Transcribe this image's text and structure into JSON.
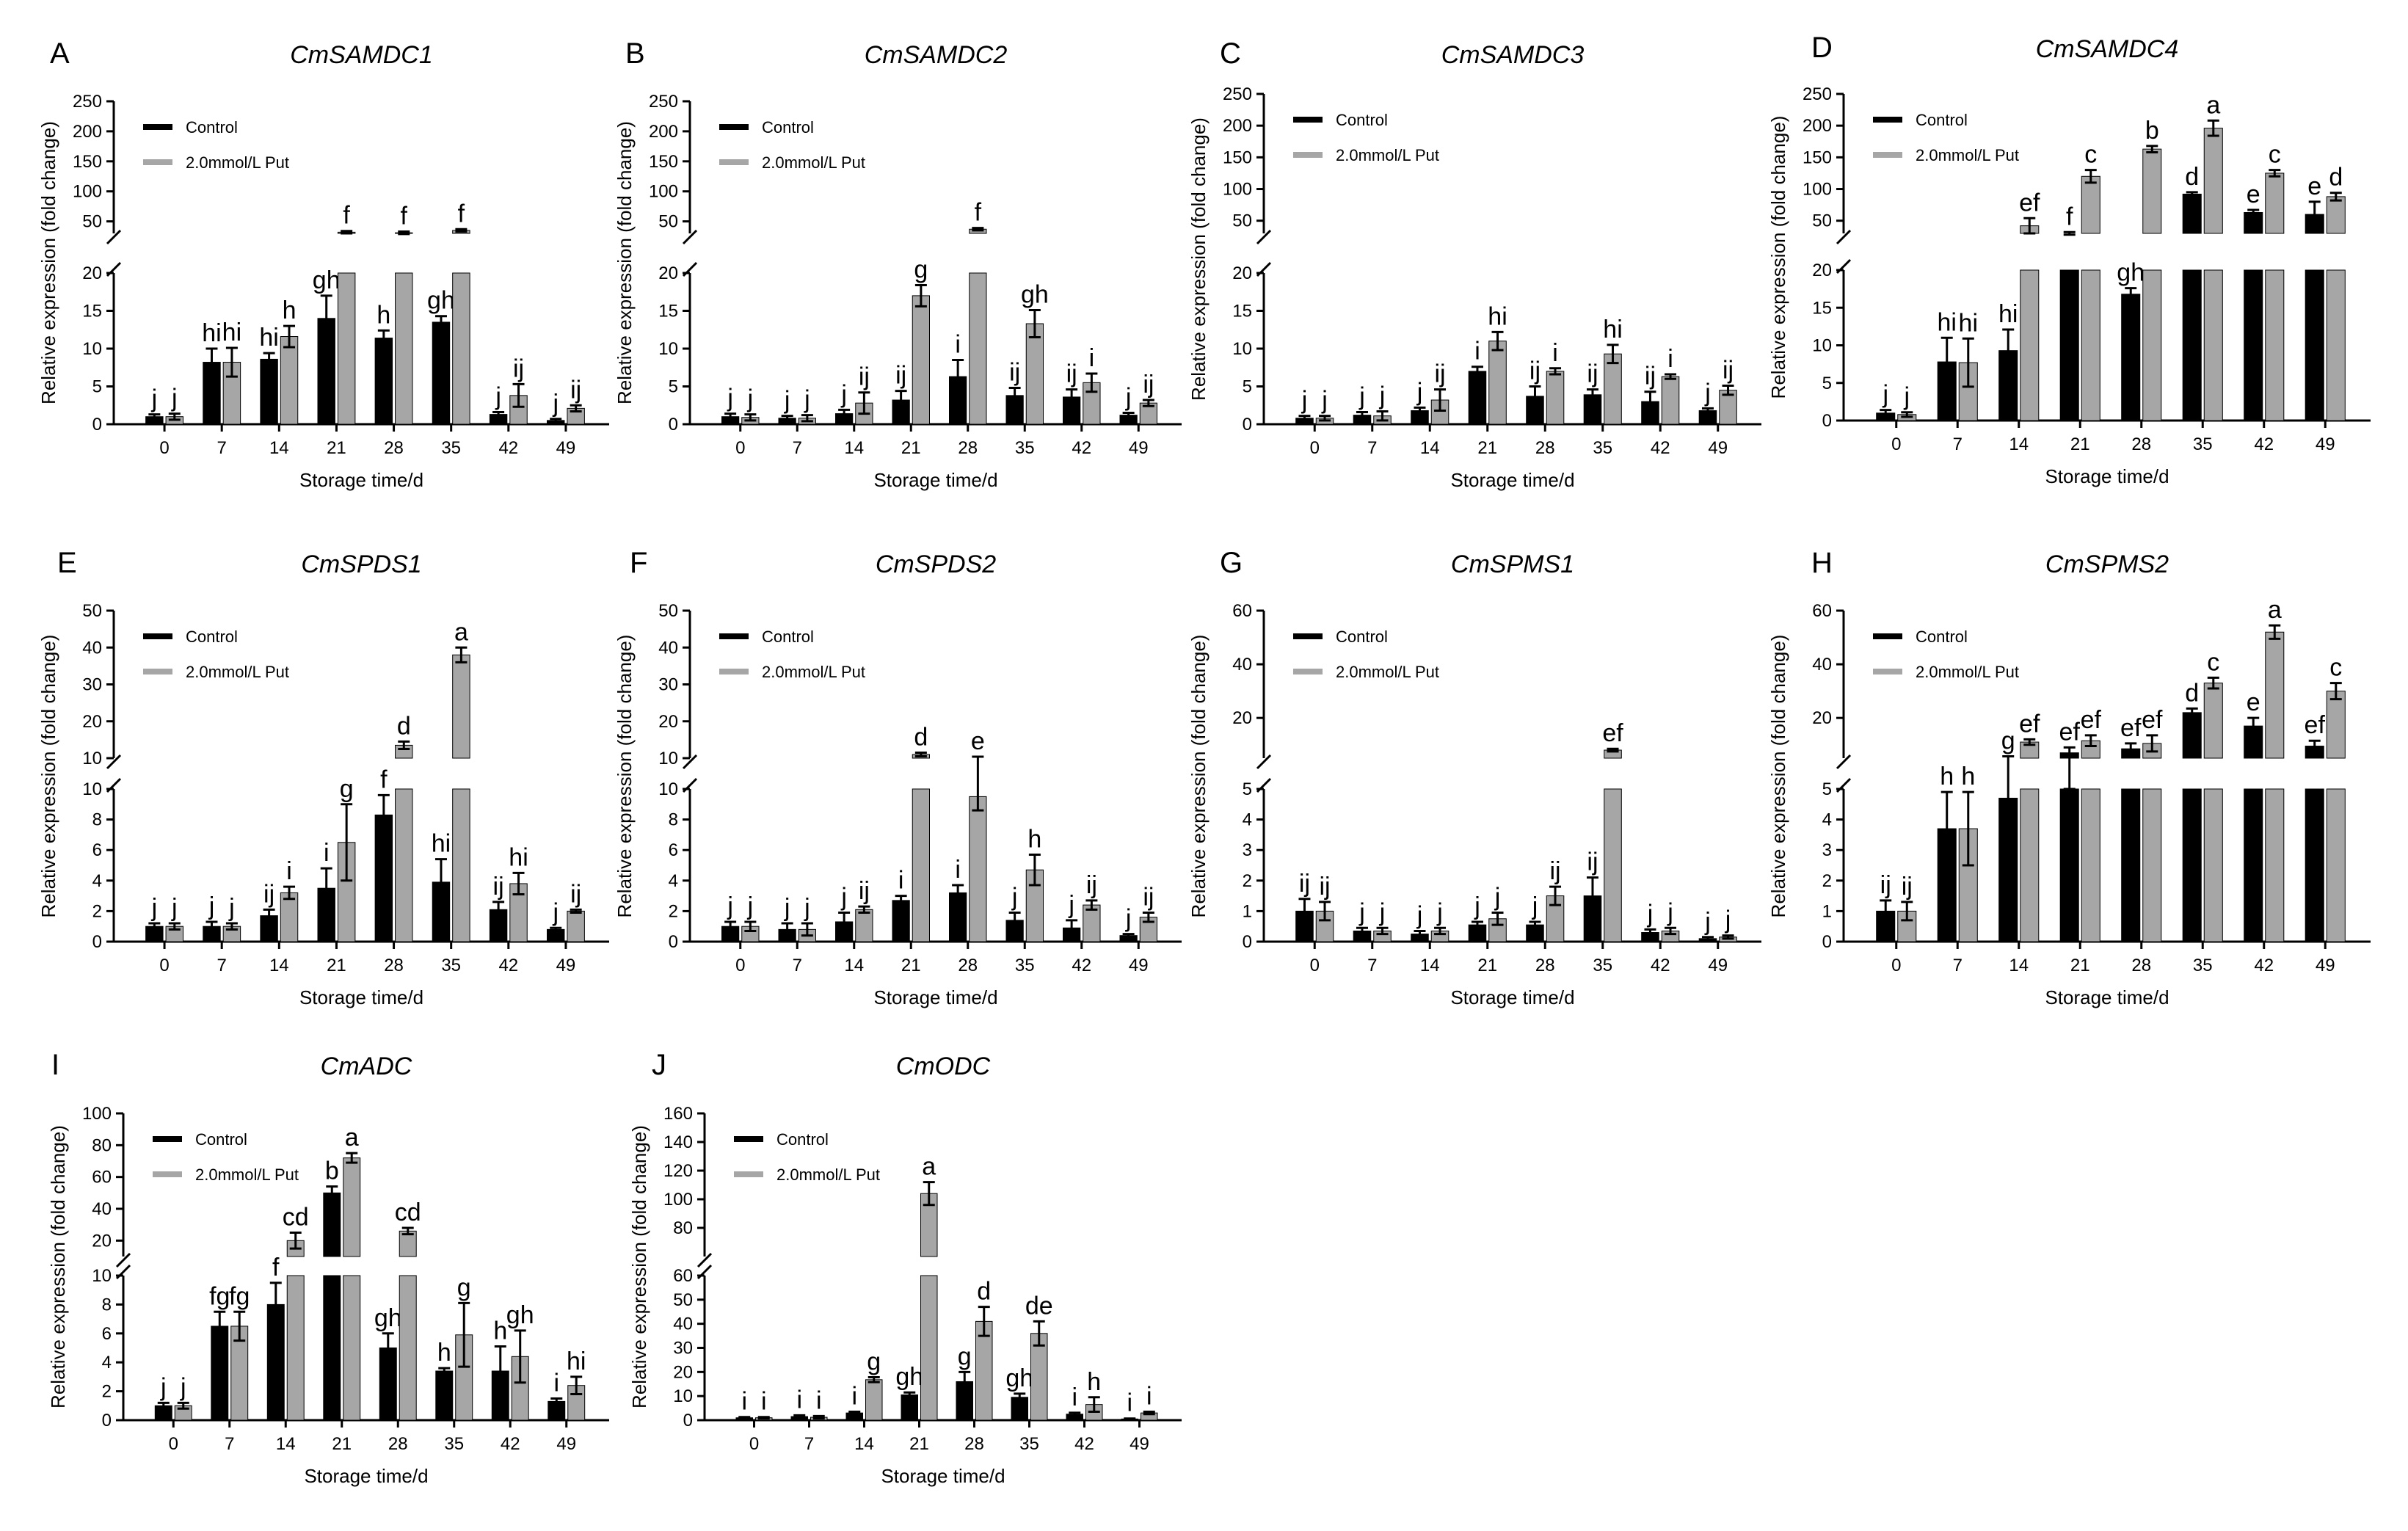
{
  "colors": {
    "control": "#000000",
    "put": "#a6a6a6",
    "axis": "#000000"
  },
  "chart_data": [
    {
      "letter": "A",
      "title": "CmSAMDC1",
      "type": "bar",
      "xlabel": "Storage time/d",
      "ylabel": "Relative expression (fold change)",
      "categories": [
        "0",
        "7",
        "14",
        "21",
        "28",
        "35",
        "42",
        "49"
      ],
      "legend": [
        "Control",
        "2.0mmol/L Put"
      ],
      "legend_position": "top-left",
      "axis_break": true,
      "lower_range": [
        0,
        20
      ],
      "lower_ticks": [
        "0",
        "5",
        "10",
        "15",
        "20"
      ],
      "upper_range": [
        30,
        250
      ],
      "upper_ticks": [
        "50",
        "100",
        "150",
        "200",
        "250"
      ],
      "series": [
        {
          "name": "Control",
          "values": [
            1.0,
            8.2,
            8.6,
            14.0,
            11.4,
            13.5,
            1.3,
            0.5
          ],
          "errors": [
            0.3,
            1.8,
            0.8,
            3.0,
            1.0,
            0.8,
            0.3,
            0.2
          ],
          "labels": [
            "j",
            "hi",
            "hi",
            "gh",
            "h",
            "gh",
            "j",
            "j"
          ]
        },
        {
          "name": "2.0mmol/L Put",
          "values": [
            1.0,
            8.2,
            11.6,
            32,
            31,
            35,
            3.8,
            2.1
          ],
          "errors": [
            0.4,
            1.9,
            1.4,
            2.0,
            2.0,
            2.0,
            1.5,
            0.4
          ],
          "labels": [
            "j",
            "hi",
            "h",
            "f",
            "f",
            "f",
            "ij",
            "ij"
          ]
        }
      ]
    },
    {
      "letter": "B",
      "title": "CmSAMDC2",
      "type": "bar",
      "xlabel": "Storage time/d",
      "ylabel": "Relative expression (fold change)",
      "categories": [
        "0",
        "7",
        "14",
        "21",
        "28",
        "35",
        "42",
        "49"
      ],
      "legend": [
        "Control",
        "2.0mmol/L Put"
      ],
      "legend_position": "top-left",
      "axis_break": true,
      "lower_range": [
        0,
        20
      ],
      "lower_ticks": [
        "0",
        "5",
        "10",
        "15",
        "20"
      ],
      "upper_range": [
        30,
        250
      ],
      "upper_ticks": [
        "50",
        "100",
        "150",
        "200",
        "250"
      ],
      "series": [
        {
          "name": "Control",
          "values": [
            1.0,
            0.8,
            1.4,
            3.2,
            6.3,
            3.8,
            3.6,
            1.2
          ],
          "errors": [
            0.4,
            0.3,
            0.5,
            1.2,
            2.2,
            1.0,
            1.0,
            0.3
          ],
          "labels": [
            "j",
            "j",
            "j",
            "ij",
            "i",
            "ij",
            "ij",
            "j"
          ]
        },
        {
          "name": "2.0mmol/L Put",
          "values": [
            0.9,
            0.8,
            2.8,
            17.0,
            37,
            13.3,
            5.5,
            2.8
          ],
          "errors": [
            0.4,
            0.4,
            1.4,
            1.4,
            2.0,
            1.8,
            1.2,
            0.4
          ],
          "labels": [
            "j",
            "j",
            "ij",
            "g",
            "f",
            "gh",
            "i",
            "ij"
          ]
        }
      ]
    },
    {
      "letter": "C",
      "title": "CmSAMDC3",
      "type": "bar",
      "xlabel": "Storage time/d",
      "ylabel": "Relative expression (fold change)",
      "categories": [
        "0",
        "7",
        "14",
        "21",
        "28",
        "35",
        "42",
        "49"
      ],
      "legend": [
        "Control",
        "2.0mmol/L Put"
      ],
      "legend_position": "top-left",
      "axis_break": true,
      "lower_range": [
        0,
        20
      ],
      "lower_ticks": [
        "0",
        "5",
        "10",
        "15",
        "20"
      ],
      "upper_range": [
        30,
        250
      ],
      "upper_ticks": [
        "50",
        "100",
        "150",
        "200",
        "250"
      ],
      "series": [
        {
          "name": "Control",
          "values": [
            0.8,
            1.2,
            1.8,
            7.0,
            3.7,
            3.9,
            3.0,
            1.8
          ],
          "errors": [
            0.3,
            0.4,
            0.4,
            0.6,
            1.3,
            0.7,
            1.3,
            0.3
          ],
          "labels": [
            "j",
            "j",
            "j",
            "i",
            "ij",
            "ij",
            "ij",
            "j"
          ]
        },
        {
          "name": "2.0mmol/L Put",
          "values": [
            0.8,
            1.1,
            3.2,
            11.0,
            7.0,
            9.3,
            6.3,
            4.5
          ],
          "errors": [
            0.3,
            0.6,
            1.4,
            1.2,
            0.4,
            1.2,
            0.3,
            0.6
          ],
          "labels": [
            "j",
            "j",
            "ij",
            "hi",
            "i",
            "hi",
            "i",
            "ij"
          ]
        }
      ]
    },
    {
      "letter": "D",
      "title": "CmSAMDC4",
      "type": "bar",
      "xlabel": "Storage time/d",
      "ylabel": "Relative expression (fold change)",
      "categories": [
        "0",
        "7",
        "14",
        "21",
        "28",
        "35",
        "42",
        "49"
      ],
      "legend": [
        "Control",
        "2.0mmol/L Put"
      ],
      "legend_position": "top-left",
      "axis_break": true,
      "lower_range": [
        0,
        20
      ],
      "lower_ticks": [
        "0",
        "5",
        "10",
        "15",
        "20"
      ],
      "upper_range": [
        30,
        250
      ],
      "upper_ticks": [
        "50",
        "100",
        "150",
        "200",
        "250"
      ],
      "series": [
        {
          "name": "Control",
          "values": [
            1.0,
            7.8,
            9.3,
            30,
            16.8,
            92,
            63,
            60
          ],
          "errors": [
            0.4,
            3.2,
            2.8,
            2.0,
            0.8,
            3.0,
            4.0,
            20.0
          ],
          "labels": [
            "j",
            "hi",
            "hi",
            "f",
            "gh",
            "d",
            "e",
            "e"
          ]
        },
        {
          "name": "2.0mmol/L Put",
          "values": [
            0.8,
            7.7,
            42,
            120,
            163,
            196,
            125,
            88
          ],
          "errors": [
            0.3,
            3.2,
            12.0,
            10.0,
            5.0,
            12.0,
            5.0,
            6.0
          ],
          "labels": [
            "j",
            "hi",
            "ef",
            "c",
            "b",
            "a",
            "c",
            "d"
          ]
        }
      ]
    },
    {
      "letter": "E",
      "title": "CmSPDS1",
      "type": "bar",
      "xlabel": "Storage time/d",
      "ylabel": "Relative expression (fold change)",
      "categories": [
        "0",
        "7",
        "14",
        "21",
        "28",
        "35",
        "42",
        "49"
      ],
      "legend": [
        "Control",
        "2.0mmol/L Put"
      ],
      "legend_position": "top-left",
      "axis_break": true,
      "lower_range": [
        0,
        10
      ],
      "lower_ticks": [
        "0",
        "2",
        "4",
        "6",
        "8",
        "10"
      ],
      "upper_range": [
        10,
        50
      ],
      "upper_ticks": [
        "10",
        "20",
        "30",
        "40",
        "50"
      ],
      "series": [
        {
          "name": "Control",
          "values": [
            1.0,
            1.0,
            1.7,
            3.5,
            8.3,
            3.9,
            2.1,
            0.8
          ],
          "errors": [
            0.2,
            0.3,
            0.4,
            1.3,
            1.3,
            1.5,
            0.5,
            0.1
          ],
          "labels": [
            "j",
            "j",
            "ij",
            "i",
            "f",
            "hi",
            "ij",
            "j"
          ]
        },
        {
          "name": "2.0mmol/L Put",
          "values": [
            1.0,
            1.0,
            3.2,
            6.5,
            13.5,
            38.0,
            3.8,
            2.0
          ],
          "errors": [
            0.2,
            0.2,
            0.4,
            2.5,
            1.0,
            2.0,
            0.7,
            0.1
          ],
          "labels": [
            "j",
            "j",
            "i",
            "g",
            "d",
            "a",
            "hi",
            "ij"
          ]
        }
      ]
    },
    {
      "letter": "F",
      "title": "CmSPDS2",
      "type": "bar",
      "xlabel": "Storage time/d",
      "ylabel": "Relative expression (fold change)",
      "categories": [
        "0",
        "7",
        "14",
        "21",
        "28",
        "35",
        "42",
        "49"
      ],
      "legend": [
        "Control",
        "2.0mmol/L Put"
      ],
      "legend_position": "top-left",
      "axis_break": true,
      "lower_range": [
        0,
        10
      ],
      "lower_ticks": [
        "0",
        "2",
        "4",
        "6",
        "8",
        "10"
      ],
      "upper_range": [
        10,
        50
      ],
      "upper_ticks": [
        "10",
        "20",
        "30",
        "40",
        "50"
      ],
      "series": [
        {
          "name": "Control",
          "values": [
            1.0,
            0.8,
            1.3,
            2.7,
            3.2,
            1.4,
            0.9,
            0.4
          ],
          "errors": [
            0.3,
            0.4,
            0.6,
            0.3,
            0.5,
            0.5,
            0.5,
            0.1
          ],
          "labels": [
            "j",
            "j",
            "j",
            "i",
            "i",
            "j",
            "j",
            "j"
          ]
        },
        {
          "name": "2.0mmol/L Put",
          "values": [
            1.0,
            0.8,
            2.1,
            11.0,
            9.5,
            4.7,
            2.4,
            1.6
          ],
          "errors": [
            0.3,
            0.4,
            0.2,
            0.5,
            0.9,
            1.0,
            0.3,
            0.3
          ],
          "labels": [
            "j",
            "j",
            "ij",
            "d",
            "e",
            "h",
            "ij",
            "ij"
          ]
        }
      ]
    },
    {
      "letter": "G",
      "title": "CmSPMS1",
      "type": "bar",
      "xlabel": "Storage time/d",
      "ylabel": "Relative expression (fold change)",
      "categories": [
        "0",
        "7",
        "14",
        "21",
        "28",
        "35",
        "42",
        "49"
      ],
      "legend": [
        "Control",
        "2.0mmol/L Put"
      ],
      "legend_position": "top-left",
      "axis_break": true,
      "lower_range": [
        0,
        5
      ],
      "lower_ticks": [
        "0",
        "1",
        "2",
        "3",
        "4",
        "5"
      ],
      "upper_range": [
        5,
        60
      ],
      "upper_ticks": [
        "20",
        "40",
        "60"
      ],
      "series": [
        {
          "name": "Control",
          "values": [
            1.0,
            0.35,
            0.25,
            0.55,
            0.55,
            1.5,
            0.3,
            0.1
          ],
          "errors": [
            0.4,
            0.1,
            0.1,
            0.1,
            0.1,
            0.6,
            0.1,
            0.05
          ],
          "labels": [
            "ij",
            "j",
            "j",
            "j",
            "j",
            "ij",
            "j",
            "j"
          ]
        },
        {
          "name": "2.0mmol/L Put",
          "values": [
            1.0,
            0.35,
            0.35,
            0.75,
            1.5,
            8.0,
            0.35,
            0.15
          ],
          "errors": [
            0.3,
            0.1,
            0.1,
            0.2,
            0.3,
            0.5,
            0.1,
            0.05
          ],
          "labels": [
            "ij",
            "j",
            "j",
            "j",
            "ij",
            "ef",
            "j",
            "j"
          ]
        }
      ]
    },
    {
      "letter": "H",
      "title": "CmSPMS2",
      "type": "bar",
      "xlabel": "Storage time/d",
      "ylabel": "Relative expression (fold change)",
      "categories": [
        "0",
        "7",
        "14",
        "21",
        "28",
        "35",
        "42",
        "49"
      ],
      "legend": [
        "Control",
        "2.0mmol/L Put"
      ],
      "legend_position": "top-left",
      "axis_break": true,
      "lower_range": [
        0,
        5
      ],
      "lower_ticks": [
        "0",
        "1",
        "2",
        "3",
        "4",
        "5"
      ],
      "upper_range": [
        5,
        60
      ],
      "upper_ticks": [
        "20",
        "40",
        "60"
      ],
      "series": [
        {
          "name": "Control",
          "values": [
            1.0,
            3.7,
            4.7,
            7.0,
            8.5,
            22.0,
            17.0,
            9.5
          ],
          "errors": [
            0.35,
            1.2,
            1.0,
            2.0,
            2.0,
            1.5,
            3.0,
            2.0
          ],
          "labels": [
            "ij",
            "h",
            "g",
            "ef",
            "ef",
            "d",
            "e",
            "ef"
          ]
        },
        {
          "name": "2.0mmol/L Put",
          "values": [
            1.0,
            3.7,
            11.0,
            11.5,
            10.5,
            33.0,
            52.0,
            30.0
          ],
          "errors": [
            0.3,
            1.2,
            1.0,
            2.0,
            3.0,
            2.0,
            2.5,
            3.0
          ],
          "labels": [
            "ij",
            "h",
            "ef",
            "ef",
            "ef",
            "c",
            "a",
            "c"
          ]
        }
      ]
    },
    {
      "letter": "I",
      "title": "CmADC",
      "type": "bar",
      "xlabel": "Storage time/d",
      "ylabel": "Relative expression (fold change)",
      "categories": [
        "0",
        "7",
        "14",
        "21",
        "28",
        "35",
        "42",
        "49"
      ],
      "legend": [
        "Control",
        "2.0mmol/L Put"
      ],
      "legend_position": "top-left",
      "axis_break": true,
      "lower_range": [
        0,
        10
      ],
      "lower_ticks": [
        "0",
        "2",
        "4",
        "6",
        "8",
        "10"
      ],
      "upper_range": [
        10,
        100
      ],
      "upper_ticks": [
        "20",
        "40",
        "60",
        "80",
        "100"
      ],
      "series": [
        {
          "name": "Control",
          "values": [
            1.0,
            6.5,
            8.0,
            50.0,
            5.0,
            3.4,
            3.4,
            1.3
          ],
          "errors": [
            0.2,
            1.0,
            1.5,
            4.0,
            1.0,
            0.2,
            1.7,
            0.2
          ],
          "labels": [
            "j",
            "fg",
            "f",
            "b",
            "gh",
            "h",
            "h",
            "i"
          ]
        },
        {
          "name": "2.0mmol/L Put",
          "values": [
            1.0,
            6.5,
            20.0,
            72.0,
            26.0,
            5.9,
            4.4,
            2.4
          ],
          "errors": [
            0.2,
            1.0,
            5.0,
            3.0,
            2.0,
            2.2,
            1.8,
            0.6
          ],
          "labels": [
            "j",
            "fg",
            "cd",
            "a",
            "cd",
            "g",
            "gh",
            "hi"
          ]
        }
      ]
    },
    {
      "letter": "J",
      "title": "CmODC",
      "type": "bar",
      "xlabel": "Storage time/d",
      "ylabel": "Relative expression (fold change)",
      "categories": [
        "0",
        "7",
        "14",
        "21",
        "28",
        "35",
        "42",
        "49"
      ],
      "legend": [
        "Control",
        "2.0mmol/L Put"
      ],
      "legend_position": "top-left",
      "axis_break": true,
      "lower_range": [
        0,
        60
      ],
      "lower_ticks": [
        "0",
        "10",
        "20",
        "30",
        "40",
        "50",
        "60"
      ],
      "upper_range": [
        60,
        160
      ],
      "upper_ticks": [
        "80",
        "100",
        "120",
        "140",
        "160"
      ],
      "series": [
        {
          "name": "Control",
          "values": [
            1.0,
            1.5,
            3.0,
            10.5,
            16.0,
            9.5,
            2.5,
            0.5
          ],
          "errors": [
            0.3,
            0.5,
            0.5,
            1.0,
            4.0,
            1.5,
            0.6,
            0.2
          ],
          "labels": [
            "i",
            "i",
            "i",
            "gh",
            "g",
            "gh",
            "i",
            "i"
          ]
        },
        {
          "name": "2.0mmol/L Put",
          "values": [
            1.0,
            1.2,
            16.8,
            104.0,
            41.0,
            36.0,
            6.5,
            3.0
          ],
          "errors": [
            0.3,
            0.5,
            1.0,
            8.0,
            6.0,
            5.0,
            3.0,
            0.5
          ],
          "labels": [
            "i",
            "i",
            "g",
            "a",
            "d",
            "de",
            "h",
            "i"
          ]
        }
      ]
    }
  ]
}
